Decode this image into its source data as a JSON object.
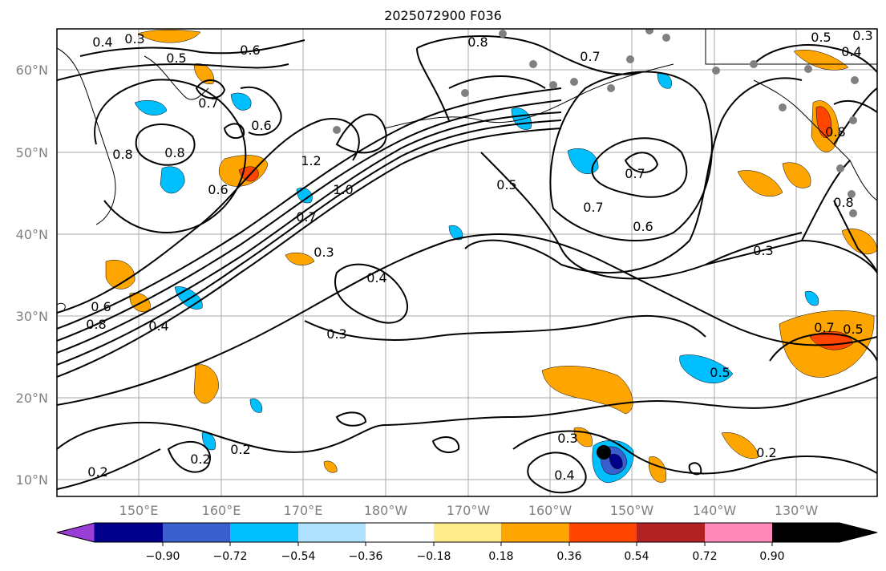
{
  "title": "2025072900 F036",
  "lat_labels": [
    "60°N",
    "50°N",
    "40°N",
    "30°N",
    "20°N",
    "10°N"
  ],
  "lon_labels": [
    "150°E",
    "160°E",
    "170°E",
    "180°W",
    "170°W",
    "160°W",
    "150°W",
    "140°W",
    "130°W"
  ],
  "colorbar": {
    "colors": [
      "#9a3fd6",
      "#00008b",
      "#3a5fcd",
      "#00bfff",
      "#b0e2ff",
      "#ffffff",
      "#ffec8b",
      "#ffa500",
      "#ff4500",
      "#b22222",
      "#ff88b8"
    ],
    "tick_labels": [
      "−0.90",
      "−0.72",
      "−0.54",
      "−0.36",
      "−0.18",
      "0.18",
      "0.36",
      "0.54",
      "0.72",
      "0.90"
    ]
  },
  "contour_labels": [
    {
      "text": "0.3"
    },
    {
      "text": "0.4"
    },
    {
      "text": "0.5"
    },
    {
      "text": "0.6"
    },
    {
      "text": "0.7"
    },
    {
      "text": "0.8"
    },
    {
      "text": "0.6"
    },
    {
      "text": "0.8"
    },
    {
      "text": "0.6"
    },
    {
      "text": "1.2"
    },
    {
      "text": "1.0"
    },
    {
      "text": "0.7"
    },
    {
      "text": "0.3"
    },
    {
      "text": "0.5"
    },
    {
      "text": "0.7"
    },
    {
      "text": "0.7"
    },
    {
      "text": "0.6"
    },
    {
      "text": "0.4"
    },
    {
      "text": "0.3"
    },
    {
      "text": "0.4"
    },
    {
      "text": "0.6"
    },
    {
      "text": "0.8"
    },
    {
      "text": "0.3"
    },
    {
      "text": "0.7"
    },
    {
      "text": "0.5"
    },
    {
      "text": "0.5"
    },
    {
      "text": "0.2"
    },
    {
      "text": "0.2"
    },
    {
      "text": "0.2"
    },
    {
      "text": "0.3"
    },
    {
      "text": "0.4"
    },
    {
      "text": "0.2"
    },
    {
      "text": "0.8"
    },
    {
      "text": "0.8"
    },
    {
      "text": "0.5"
    },
    {
      "text": "0.3"
    },
    {
      "text": "0.4"
    },
    {
      "text": "0.8"
    },
    {
      "text": "0.7"
    }
  ]
}
